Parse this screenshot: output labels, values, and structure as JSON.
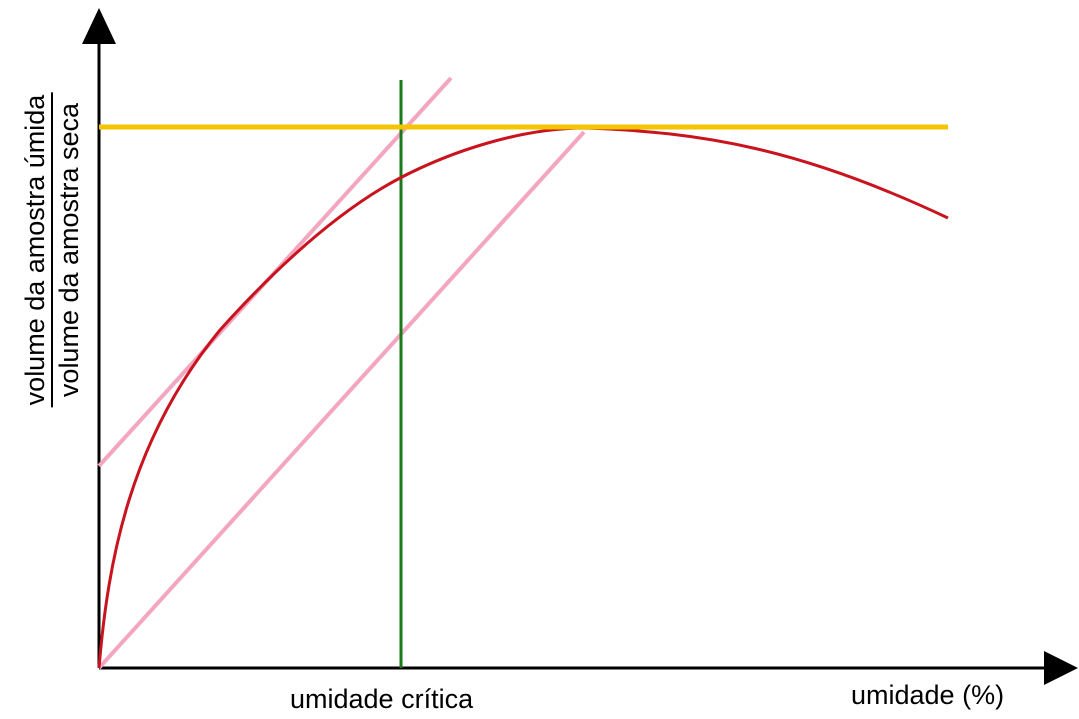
{
  "diagram": {
    "x_axis_label": "umidade (%)",
    "critical_label": "umidade crítica",
    "y_axis_label": {
      "numerator": "volume da amostra úmida",
      "denominator": "volume da amostra seca"
    },
    "colors": {
      "axes": "#000000",
      "swelling_curve": "#c8141e",
      "max_line": "#f5c400",
      "tangent_lines": "#f4a6c0",
      "critical_line": "#1a7a1a"
    }
  }
}
